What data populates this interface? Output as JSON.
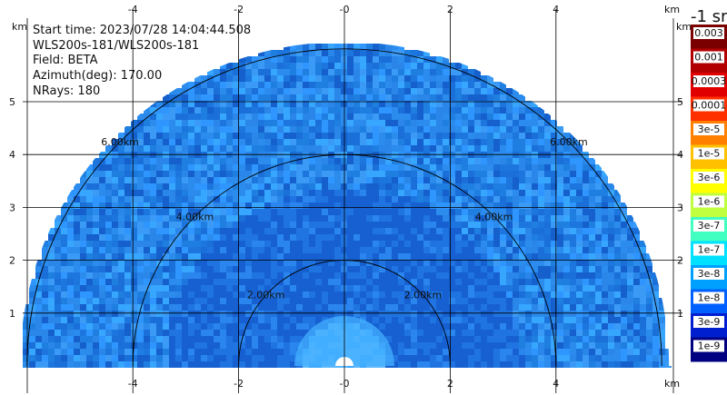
{
  "info": {
    "start_time": "Start time: 2023/07/28 14:04:44.508",
    "instrument": "WLS200s-181/WLS200s-181",
    "field": "Field: BETA",
    "azimuth": "Azimuth(deg): 170.00",
    "nrays": "NRays: 180"
  },
  "chart_data": {
    "type": "heatmap",
    "subtype": "RHI polar sector scan (semicircle, range vs height)",
    "x_unit": "km",
    "y_unit": "km",
    "x_ticks": [
      "-4",
      "-2",
      "-0",
      "2",
      "4"
    ],
    "x_tick_values": [
      -4,
      -2,
      0,
      2,
      4
    ],
    "y_ticks": [
      "1",
      "2",
      "3",
      "4",
      "5"
    ],
    "y_tick_values": [
      1,
      2,
      3,
      4,
      5
    ],
    "xlim": [
      -6.1,
      6.1
    ],
    "ylim": [
      0,
      6.1
    ],
    "max_range_km": 6.0,
    "range_rings": [
      {
        "r": 2,
        "label": "2.00km"
      },
      {
        "r": 4,
        "label": "4.00km"
      },
      {
        "r": 6,
        "label": "6.00km"
      }
    ],
    "grid": true,
    "colorbar": {
      "title": "-1 sr",
      "labels": [
        "0.003",
        "0.001",
        "0.0003",
        "0.0001",
        "3e-5",
        "1e-5",
        "3e-6",
        "1e-6",
        "3e-7",
        "1e-7",
        "3e-8",
        "1e-8",
        "3e-9",
        "1e-9"
      ],
      "colors": [
        "#7a0000",
        "#b20000",
        "#e00000",
        "#ff3000",
        "#ff8000",
        "#ffc000",
        "#ffff00",
        "#c0ff40",
        "#40ffc0",
        "#00e0ff",
        "#00a0ff",
        "#0060ff",
        "#0020d0",
        "#000080"
      ]
    }
  }
}
